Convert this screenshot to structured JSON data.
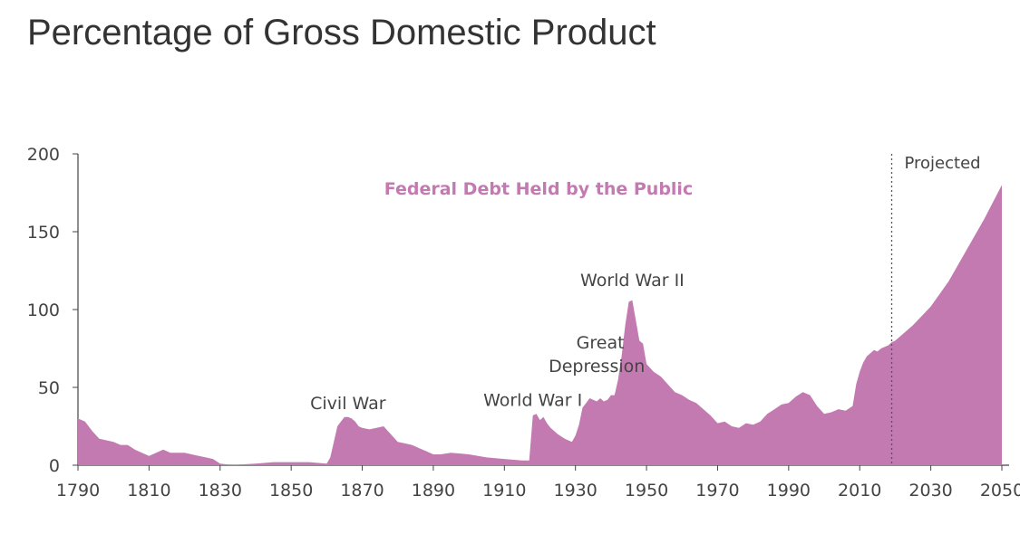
{
  "chart_data": {
    "type": "area",
    "title": "Percentage of Gross Domestic Product",
    "series": [
      {
        "name": "Federal Debt Held by the Public",
        "color": "#c27ab1",
        "x": [
          1790,
          1792,
          1794,
          1796,
          1800,
          1802,
          1804,
          1806,
          1808,
          1810,
          1812,
          1814,
          1816,
          1818,
          1820,
          1822,
          1824,
          1826,
          1828,
          1830,
          1832,
          1834,
          1836,
          1840,
          1845,
          1850,
          1855,
          1860,
          1861,
          1862,
          1863,
          1864,
          1865,
          1866,
          1867,
          1868,
          1869,
          1870,
          1872,
          1874,
          1876,
          1878,
          1880,
          1882,
          1884,
          1886,
          1888,
          1890,
          1892,
          1895,
          1900,
          1905,
          1910,
          1915,
          1916,
          1917,
          1918,
          1919,
          1920,
          1921,
          1922,
          1923,
          1925,
          1927,
          1929,
          1930,
          1931,
          1932,
          1933,
          1934,
          1935,
          1936,
          1937,
          1938,
          1939,
          1940,
          1941,
          1942,
          1943,
          1944,
          1945,
          1946,
          1947,
          1948,
          1949,
          1950,
          1952,
          1954,
          1956,
          1958,
          1960,
          1962,
          1964,
          1966,
          1968,
          1970,
          1972,
          1974,
          1976,
          1978,
          1980,
          1982,
          1984,
          1986,
          1988,
          1990,
          1992,
          1994,
          1996,
          1998,
          2000,
          2002,
          2004,
          2006,
          2008,
          2009,
          2010,
          2011,
          2012,
          2013,
          2014,
          2015,
          2016,
          2017,
          2018,
          2019,
          2020,
          2025,
          2030,
          2035,
          2040,
          2045,
          2050
        ],
        "values": [
          30,
          28,
          22,
          17,
          15,
          13,
          13,
          10,
          8,
          6,
          8,
          10,
          8,
          8,
          8,
          7,
          6,
          5,
          4,
          1,
          0.5,
          0.3,
          0.5,
          1,
          2,
          2,
          2,
          1,
          5,
          15,
          25,
          28,
          31,
          31,
          30,
          28,
          25,
          24,
          23,
          24,
          25,
          20,
          15,
          14,
          13,
          11,
          9,
          7,
          7,
          8,
          7,
          5,
          4,
          3,
          3,
          3,
          32,
          33,
          29,
          31,
          27,
          24,
          20,
          17,
          15,
          19,
          26,
          37,
          40,
          43,
          42,
          41,
          43,
          41,
          42,
          45,
          45,
          55,
          70,
          90,
          105,
          106,
          93,
          80,
          78,
          65,
          60,
          57,
          52,
          47,
          45,
          42,
          40,
          36,
          32,
          27,
          28,
          25,
          24,
          27,
          26,
          28,
          33,
          36,
          39,
          40,
          44,
          47,
          45,
          38,
          33,
          34,
          36,
          35,
          38,
          52,
          60,
          66,
          70,
          72,
          74,
          73,
          75,
          76,
          77,
          79,
          80,
          90,
          102,
          118,
          138,
          158,
          180
        ]
      }
    ],
    "xlim": [
      1790,
      2050
    ],
    "ylim": [
      0,
      200
    ],
    "xticks": [
      1790,
      1810,
      1830,
      1850,
      1870,
      1890,
      1910,
      1930,
      1950,
      1970,
      1990,
      2010,
      2030,
      2050
    ],
    "xtick_labels": [
      "1790",
      "1810",
      "1830",
      "1850",
      "1870",
      "1890",
      "1910",
      "1930",
      "1950",
      "1970",
      "1990",
      "2010",
      "2030",
      "2050"
    ],
    "yticks": [
      0,
      50,
      100,
      150,
      200
    ],
    "ytick_labels": [
      "0",
      "50",
      "100",
      "150",
      "200"
    ],
    "projection_start": 2019,
    "projection_label": "Projected",
    "annotations": [
      {
        "text": "Civil War",
        "x": 1866,
        "y": 36
      },
      {
        "text": "World War I",
        "x": 1918,
        "y": 38
      },
      {
        "text": "Great",
        "x": 1937,
        "y": 75
      },
      {
        "text": "Depression",
        "x": 1936,
        "y": 60
      },
      {
        "text": "World War II",
        "x": 1946,
        "y": 115
      }
    ],
    "grid": false,
    "legend": "none"
  }
}
